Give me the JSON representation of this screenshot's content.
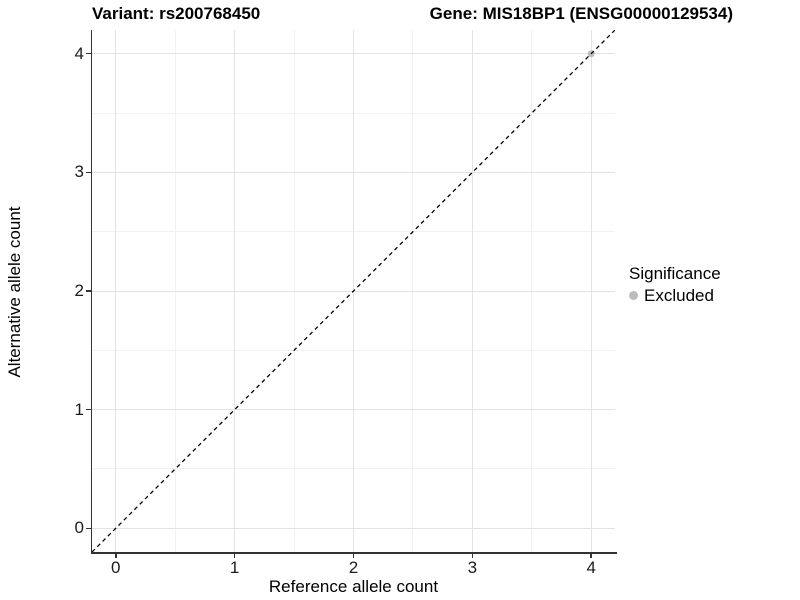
{
  "header": {
    "title_left": "Variant: rs200768450",
    "title_right": "Gene: MIS18BP1 (ENSG00000129534)"
  },
  "chart_data": {
    "type": "scatter",
    "title_left": "Variant: rs200768450",
    "title_right": "Gene: MIS18BP1 (ENSG00000129534)",
    "xlabel": "Reference allele count",
    "ylabel": "Alternative allele count",
    "xlim": [
      -0.2,
      4.2
    ],
    "ylim": [
      -0.2,
      4.2
    ],
    "x_ticks": [
      0,
      1,
      2,
      3,
      4
    ],
    "y_ticks": [
      0,
      1,
      2,
      3,
      4
    ],
    "x_minor_ticks": [
      0.5,
      1.5,
      2.5,
      3.5
    ],
    "y_minor_ticks": [
      0.5,
      1.5,
      2.5,
      3.5
    ],
    "grid": true,
    "series": [
      {
        "name": "Excluded",
        "color": "#bdbdbd",
        "points": [
          {
            "x": 4,
            "y": 4
          }
        ]
      }
    ],
    "reference_line": {
      "slope": 1,
      "intercept": 0,
      "style": "dashed",
      "color": "#000000"
    },
    "legend": {
      "position": "right",
      "title": "Significance",
      "entries": [
        {
          "label": "Excluded",
          "color": "#bdbdbd"
        }
      ]
    },
    "style": {
      "background": "#ffffff",
      "major_grid": "#e3e3e3",
      "minor_grid": "#f1f1f1",
      "axis_line": "#333333",
      "tick_label_color": "#1c1c1c",
      "point_radius": 3.5
    }
  }
}
